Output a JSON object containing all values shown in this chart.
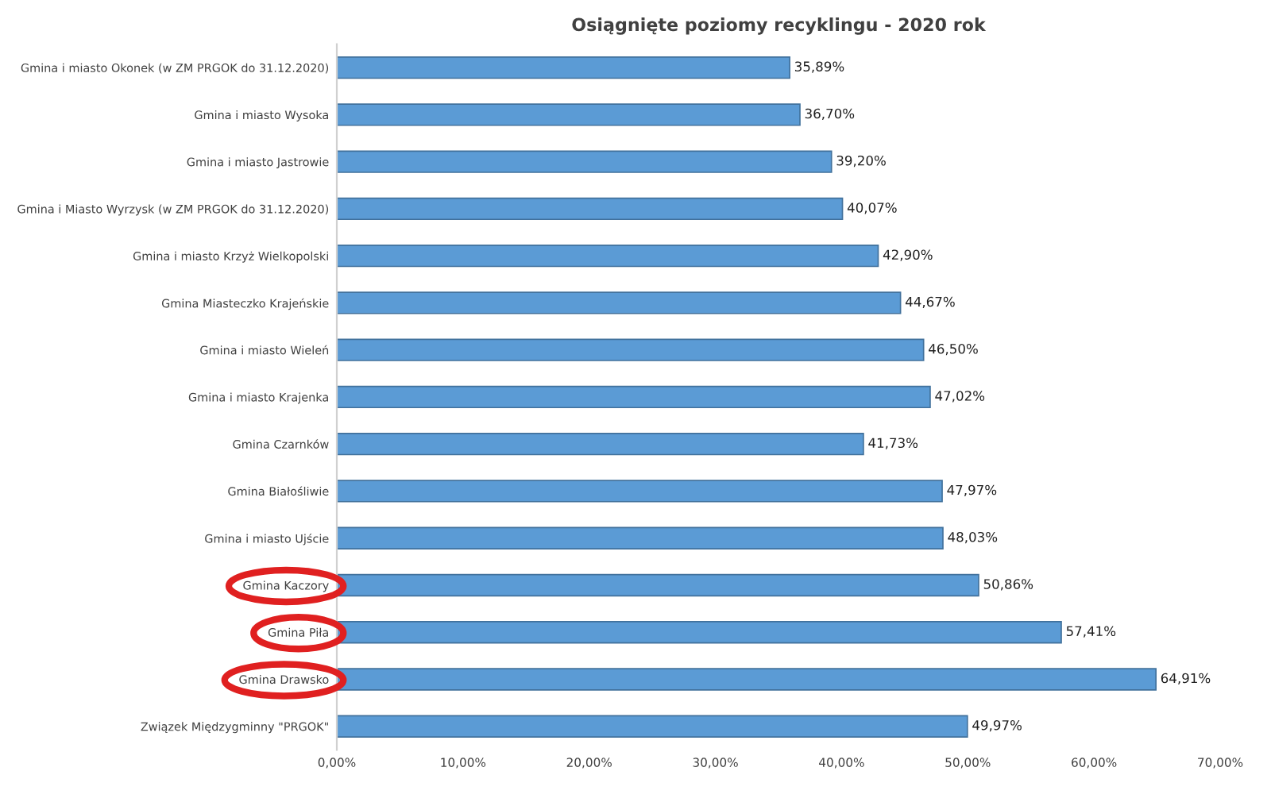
{
  "chart_data": {
    "type": "bar",
    "orientation": "horizontal",
    "title": "Osiągnięte poziomy recyklingu - 2020 rok",
    "categories": [
      "Gmina i miasto Okonek (w ZM PRGOK do 31.12.2020)",
      "Gmina i miasto Wysoka",
      "Gmina i miasto Jastrowie",
      "Gmina i Miasto Wyrzysk (w ZM PRGOK do 31.12.2020)",
      "Gmina i miasto Krzyż Wielkopolski",
      "Gmina Miasteczko Krajeńskie",
      "Gmina i miasto Wieleń",
      "Gmina i miasto Krajenka",
      "Gmina Czarnków",
      "Gmina Białośliwie",
      "Gmina i miasto Ujście",
      "Gmina Kaczory",
      "Gmina Piła",
      "Gmina Drawsko",
      "Związek Międzygminny \"PRGOK\""
    ],
    "values": [
      35.89,
      36.7,
      39.2,
      40.07,
      42.9,
      44.67,
      46.5,
      47.02,
      41.73,
      47.97,
      48.03,
      50.86,
      57.41,
      64.91,
      49.97
    ],
    "value_labels": [
      "35,89%",
      "36,70%",
      "39,20%",
      "40,07%",
      "42,90%",
      "44,67%",
      "46,50%",
      "47,02%",
      "41,73%",
      "47,97%",
      "48,03%",
      "50,86%",
      "57,41%",
      "64,91%",
      "49,97%"
    ],
    "color": "#5b9bd5",
    "xlim": [
      0,
      70
    ],
    "xticks": [
      {
        "value": 0,
        "label": "0,00%"
      },
      {
        "value": 10,
        "label": "10,00%"
      },
      {
        "value": 20,
        "label": "20,00%"
      },
      {
        "value": 30,
        "label": "30,00%"
      },
      {
        "value": 40,
        "label": "40,00%"
      },
      {
        "value": 50,
        "label": "50,00%"
      },
      {
        "value": 60,
        "label": "60,00%"
      },
      {
        "value": 70,
        "label": "70,00%"
      }
    ],
    "grid": false,
    "legend": false
  }
}
